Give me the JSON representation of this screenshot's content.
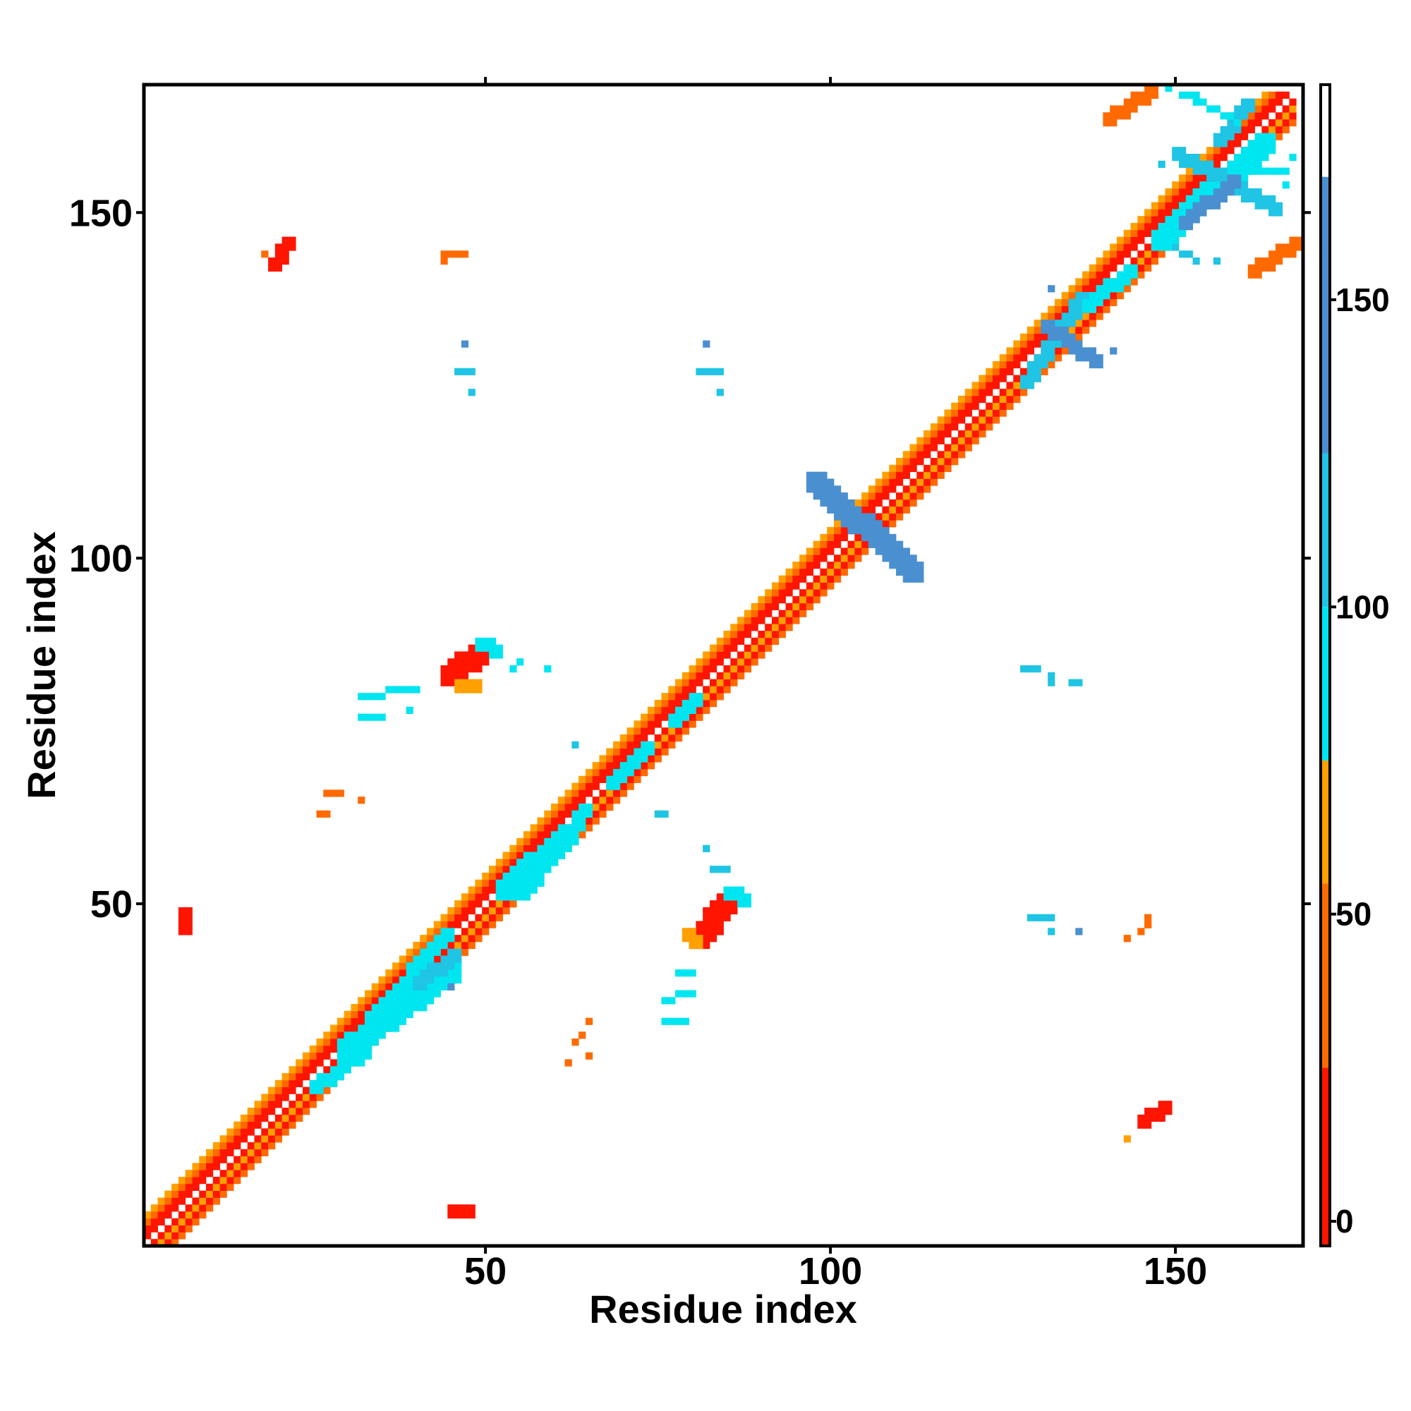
{
  "chart_data": {
    "type": "heatmap",
    "title": "",
    "xlabel": "Residue index",
    "ylabel": "Residue index",
    "xlim": [
      1,
      168
    ],
    "ylim": [
      1,
      168
    ],
    "x_ticks": [
      50,
      100,
      150
    ],
    "y_ticks": [
      50,
      100,
      150
    ],
    "colorbar": {
      "range": [
        -4,
        185
      ],
      "ticks": [
        0,
        50,
        100,
        150
      ],
      "bands": [
        {
          "from": -4,
          "to": 25,
          "color": "#ff1500"
        },
        {
          "from": 25,
          "to": 55,
          "color": "#ff6a00"
        },
        {
          "from": 55,
          "to": 75,
          "color": "#ffa000"
        },
        {
          "from": 75,
          "to": 100,
          "color": "#00e6f0"
        },
        {
          "from": 100,
          "to": 125,
          "color": "#20c4e4"
        },
        {
          "from": 125,
          "to": 170,
          "color": "#4a90d0"
        },
        {
          "from": 170,
          "to": 185,
          "color": "#ffffff"
        }
      ]
    },
    "regions": [
      {
        "kind": "diagonal",
        "from": 1,
        "to": 167
      },
      {
        "kind": "segment",
        "x0": 25,
        "y0": 23,
        "x1": 32,
        "y1": 28,
        "color": "#00e6f0",
        "width": 2
      },
      {
        "kind": "segment",
        "x0": 30,
        "y0": 29,
        "x1": 45,
        "y1": 40,
        "color": "#00e6f0",
        "width": 3
      },
      {
        "kind": "segment",
        "x0": 33,
        "y0": 33,
        "x1": 44,
        "y1": 45,
        "color": "#00e6f0",
        "width": 2
      },
      {
        "kind": "segment",
        "x0": 40,
        "y0": 38,
        "x1": 45,
        "y1": 42,
        "color": "#20c4e4",
        "width": 2
      },
      {
        "kind": "segment",
        "x0": 53,
        "y0": 52,
        "x1": 62,
        "y1": 60,
        "color": "#00e6f0",
        "width": 3
      },
      {
        "kind": "segment",
        "x0": 55,
        "y0": 51,
        "x1": 64,
        "y1": 63,
        "color": "#00e6f0",
        "width": 2
      },
      {
        "kind": "segment",
        "x0": 68,
        "y0": 67,
        "x1": 73,
        "y1": 72,
        "color": "#00e6f0",
        "width": 2
      },
      {
        "kind": "segment",
        "x0": 77,
        "y0": 76,
        "x1": 80,
        "y1": 79,
        "color": "#00e6f0",
        "width": 2
      },
      {
        "kind": "segment",
        "x0": 98,
        "y0": 111,
        "x1": 112,
        "y1": 98,
        "color": "#4a90d0",
        "width": 3
      },
      {
        "kind": "segment",
        "x0": 128,
        "y0": 125,
        "x1": 136,
        "y1": 137,
        "color": "#20c4e4",
        "width": 2
      },
      {
        "kind": "segment",
        "x0": 131,
        "y0": 133,
        "x1": 138,
        "y1": 128,
        "color": "#4a90d0",
        "width": 2
      },
      {
        "kind": "segment",
        "x0": 137,
        "y0": 136,
        "x1": 143,
        "y1": 141,
        "color": "#00e6f0",
        "width": 2
      },
      {
        "kind": "segment",
        "x0": 148,
        "y0": 146,
        "x1": 163,
        "y1": 160,
        "color": "#00e6f0",
        "width": 3
      },
      {
        "kind": "segment",
        "x0": 150,
        "y0": 158,
        "x1": 164,
        "y1": 150,
        "color": "#20c4e4",
        "width": 2
      },
      {
        "kind": "segment",
        "x0": 151,
        "y0": 148,
        "x1": 158,
        "y1": 154,
        "color": "#4a90d0",
        "width": 2
      },
      {
        "kind": "segment",
        "x0": 156,
        "y0": 160,
        "x1": 160,
        "y1": 165,
        "color": "#20c4e4",
        "width": 2
      },
      {
        "kind": "segment",
        "x0": 151,
        "y0": 167,
        "x1": 159,
        "y1": 163,
        "color": "#00e6f0",
        "width": 1
      },
      {
        "kind": "segment",
        "x0": 160,
        "y0": 156,
        "x1": 166,
        "y1": 156,
        "color": "#00e6f0",
        "width": 1
      },
      {
        "kind": "segment",
        "x0": 150,
        "y0": 145,
        "x1": 153,
        "y1": 143,
        "color": "#20c4e4",
        "width": 1
      },
      {
        "kind": "segment",
        "x0": 19,
        "y0": 142,
        "x1": 21,
        "y1": 145,
        "color": "#ff1500",
        "width": 2
      },
      {
        "kind": "segment",
        "x0": 44,
        "y0": 144,
        "x1": 47,
        "y1": 144,
        "color": "#ff6a00",
        "width": 1
      },
      {
        "kind": "segment",
        "x0": 140,
        "y0": 163,
        "x1": 146,
        "y1": 167,
        "color": "#ff6a00",
        "width": 2
      },
      {
        "kind": "segment",
        "x0": 161,
        "y0": 141,
        "x1": 167,
        "y1": 145,
        "color": "#ff6a00",
        "width": 2
      },
      {
        "kind": "segment",
        "x0": 6,
        "y0": 46,
        "x1": 6,
        "y1": 48,
        "color": "#ff1500",
        "width": 2
      },
      {
        "kind": "segment",
        "x0": 45,
        "y0": 5,
        "x1": 47,
        "y1": 5,
        "color": "#ff1500",
        "width": 2
      },
      {
        "kind": "segment",
        "x0": 45,
        "y0": 83,
        "x1": 49,
        "y1": 86,
        "color": "#ff1500",
        "width": 3
      },
      {
        "kind": "segment",
        "x0": 46,
        "y0": 81,
        "x1": 48,
        "y1": 81,
        "color": "#ffa000",
        "width": 2
      },
      {
        "kind": "segment",
        "x0": 81,
        "y0": 45,
        "x1": 85,
        "y1": 50,
        "color": "#ff1500",
        "width": 3
      },
      {
        "kind": "segment",
        "x0": 79,
        "y0": 45,
        "x1": 80,
        "y1": 44,
        "color": "#ffa000",
        "width": 2
      },
      {
        "kind": "segment",
        "x0": 85,
        "y0": 51,
        "x1": 87,
        "y1": 50,
        "color": "#00e6f0",
        "width": 2
      },
      {
        "kind": "segment",
        "x0": 49,
        "y0": 87,
        "x1": 51,
        "y1": 86,
        "color": "#00e6f0",
        "width": 2
      },
      {
        "kind": "segment",
        "x0": 145,
        "y0": 18,
        "x1": 148,
        "y1": 20,
        "color": "#ff1500",
        "width": 2
      },
      {
        "kind": "segment",
        "x0": 145,
        "y0": 46,
        "x1": 146,
        "y1": 48,
        "color": "#ff6a00",
        "width": 1
      },
      {
        "kind": "segment",
        "x0": 78,
        "y0": 40,
        "x1": 80,
        "y1": 40,
        "color": "#00e6f0",
        "width": 1
      },
      {
        "kind": "segment",
        "x0": 76,
        "y0": 36,
        "x1": 80,
        "y1": 37,
        "color": "#00e6f0",
        "width": 1
      },
      {
        "kind": "segment",
        "x0": 76,
        "y0": 33,
        "x1": 79,
        "y1": 33,
        "color": "#00e6f0",
        "width": 1
      },
      {
        "kind": "segment",
        "x0": 32,
        "y0": 80,
        "x1": 40,
        "y1": 81,
        "color": "#00e6f0",
        "width": 1
      },
      {
        "kind": "segment",
        "x0": 32,
        "y0": 77,
        "x1": 35,
        "y1": 77,
        "color": "#00e6f0",
        "width": 1
      },
      {
        "kind": "segment",
        "x0": 54,
        "y0": 84,
        "x1": 55,
        "y1": 85,
        "color": "#00e6f0",
        "width": 1
      },
      {
        "kind": "segment",
        "x0": 27,
        "y0": 66,
        "x1": 29,
        "y1": 66,
        "color": "#ff6a00",
        "width": 1
      },
      {
        "kind": "segment",
        "x0": 26,
        "y0": 63,
        "x1": 27,
        "y1": 63,
        "color": "#ff6a00",
        "width": 1
      },
      {
        "kind": "segment",
        "x0": 63,
        "y0": 30,
        "x1": 64,
        "y1": 31,
        "color": "#ff6a00",
        "width": 1
      },
      {
        "kind": "segment",
        "x0": 75,
        "y0": 63,
        "x1": 76,
        "y1": 63,
        "color": "#20c4e4",
        "width": 1
      },
      {
        "kind": "segment",
        "x0": 83,
        "y0": 55,
        "x1": 85,
        "y1": 55,
        "color": "#20c4e4",
        "width": 1
      },
      {
        "kind": "segment",
        "x0": 46,
        "y0": 127,
        "x1": 48,
        "y1": 127,
        "color": "#20c4e4",
        "width": 1
      },
      {
        "kind": "segment",
        "x0": 81,
        "y0": 127,
        "x1": 83,
        "y1": 127,
        "color": "#20c4e4",
        "width": 1
      },
      {
        "kind": "segment",
        "x0": 128,
        "y0": 84,
        "x1": 130,
        "y1": 84,
        "color": "#20c4e4",
        "width": 1
      },
      {
        "kind": "segment",
        "x0": 135,
        "y0": 82,
        "x1": 136,
        "y1": 82,
        "color": "#20c4e4",
        "width": 1
      },
      {
        "kind": "segment",
        "x0": 129,
        "y0": 48,
        "x1": 131,
        "y1": 48,
        "color": "#20c4e4",
        "width": 1
      }
    ],
    "points": [
      {
        "x": 47,
        "y": 131,
        "color": "#4a90d0"
      },
      {
        "x": 48,
        "y": 124,
        "color": "#20c4e4"
      },
      {
        "x": 82,
        "y": 131,
        "color": "#4a90d0"
      },
      {
        "x": 84,
        "y": 124,
        "color": "#20c4e4"
      },
      {
        "x": 84,
        "y": 127,
        "color": "#20c4e4"
      },
      {
        "x": 132,
        "y": 139,
        "color": "#4a90d0"
      },
      {
        "x": 141,
        "y": 130,
        "color": "#4a90d0"
      },
      {
        "x": 132,
        "y": 83,
        "color": "#20c4e4"
      },
      {
        "x": 132,
        "y": 82,
        "color": "#20c4e4"
      },
      {
        "x": 132,
        "y": 48,
        "color": "#20c4e4"
      },
      {
        "x": 132,
        "y": 46,
        "color": "#20c4e4"
      },
      {
        "x": 136,
        "y": 46,
        "color": "#4a90d0"
      },
      {
        "x": 63,
        "y": 73,
        "color": "#20c4e4"
      },
      {
        "x": 82,
        "y": 58,
        "color": "#20c4e4"
      },
      {
        "x": 45,
        "y": 38,
        "color": "#4a90d0"
      },
      {
        "x": 59,
        "y": 84,
        "color": "#00e6f0"
      },
      {
        "x": 39,
        "y": 78,
        "color": "#00e6f0"
      },
      {
        "x": 32,
        "y": 65,
        "color": "#ff6a00"
      },
      {
        "x": 62,
        "y": 27,
        "color": "#ff6a00"
      },
      {
        "x": 65,
        "y": 28,
        "color": "#ff6a00"
      },
      {
        "x": 65,
        "y": 33,
        "color": "#ff6a00"
      },
      {
        "x": 18,
        "y": 144,
        "color": "#ff6a00"
      },
      {
        "x": 44,
        "y": 143,
        "color": "#ff6a00"
      },
      {
        "x": 143,
        "y": 16,
        "color": "#ffa000"
      },
      {
        "x": 143,
        "y": 45,
        "color": "#ff6a00"
      },
      {
        "x": 146,
        "y": 47,
        "color": "#ff6a00"
      },
      {
        "x": 149,
        "y": 168,
        "color": "#00e6f0"
      },
      {
        "x": 153,
        "y": 167,
        "color": "#00e6f0"
      },
      {
        "x": 166,
        "y": 154,
        "color": "#00e6f0"
      },
      {
        "x": 167,
        "y": 158,
        "color": "#00e6f0"
      },
      {
        "x": 148,
        "y": 157,
        "color": "#20c4e4"
      },
      {
        "x": 156,
        "y": 143,
        "color": "#20c4e4"
      }
    ]
  }
}
